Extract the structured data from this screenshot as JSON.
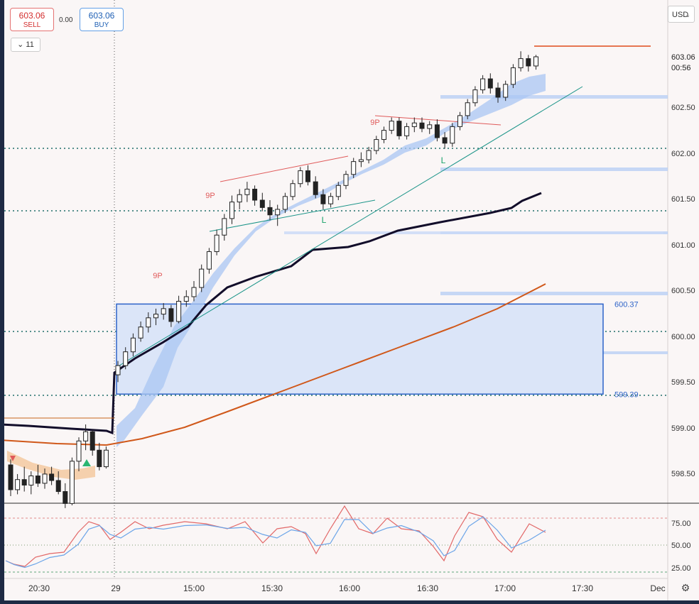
{
  "toolbar": {
    "sell_price": "603.06",
    "sell_label": "SELL",
    "spread": "0.00",
    "buy_price": "603.06",
    "buy_label": "BUY",
    "interval": "11",
    "currency": "USD"
  },
  "price_badge": {
    "price": "603.06",
    "countdown": "00:56"
  },
  "zone": {
    "top_label": "600.37",
    "bottom_label": "599.39"
  },
  "settings_icon": "gear-icon",
  "chart_data": {
    "type": "candlestick",
    "y_range": [
      598.3,
      603.15
    ],
    "y_ticks": [
      "603.06",
      "602.50",
      "602.00",
      "601.50",
      "601.00",
      "600.50",
      "600.00",
      "599.50",
      "599.00",
      "598.50"
    ],
    "x_ticks": [
      "20:30",
      "29",
      "15:00",
      "15:30",
      "16:00",
      "16:30",
      "17:00",
      "17:30",
      "Dec"
    ],
    "x_range": [
      "20:10",
      "17:55"
    ],
    "candles": [
      [
        598.62,
        598.68,
        598.28,
        598.35
      ],
      [
        598.35,
        598.52,
        598.3,
        598.46
      ],
      [
        598.46,
        598.6,
        598.33,
        598.4
      ],
      [
        598.4,
        598.55,
        598.3,
        598.5
      ],
      [
        598.5,
        598.62,
        598.38,
        598.42
      ],
      [
        598.42,
        598.58,
        598.36,
        598.52
      ],
      [
        598.52,
        598.6,
        598.4,
        598.45
      ],
      [
        598.45,
        598.55,
        598.3,
        598.33
      ],
      [
        598.33,
        598.42,
        598.15,
        598.2
      ],
      [
        598.2,
        598.7,
        598.18,
        598.66
      ],
      [
        598.66,
        598.92,
        598.55,
        598.88
      ],
      [
        598.88,
        599.06,
        598.78,
        598.98
      ],
      [
        598.98,
        599.0,
        598.72,
        598.78
      ],
      [
        598.78,
        598.86,
        598.56,
        598.6
      ],
      [
        598.6,
        598.82,
        598.58,
        598.78
      ],
      [
        599.6,
        599.75,
        599.52,
        599.7
      ],
      [
        599.7,
        599.9,
        599.66,
        599.85
      ],
      [
        599.85,
        600.05,
        599.8,
        600.0
      ],
      [
        600.0,
        600.18,
        599.96,
        600.12
      ],
      [
        600.12,
        600.28,
        600.06,
        600.22
      ],
      [
        600.22,
        600.32,
        600.14,
        600.26
      ],
      [
        600.26,
        600.38,
        600.2,
        600.32
      ],
      [
        600.32,
        600.36,
        600.12,
        600.18
      ],
      [
        600.18,
        600.46,
        600.16,
        600.4
      ],
      [
        600.4,
        600.52,
        600.34,
        600.45
      ],
      [
        600.45,
        600.62,
        600.4,
        600.55
      ],
      [
        600.55,
        600.8,
        600.5,
        600.75
      ],
      [
        600.75,
        600.98,
        600.7,
        600.94
      ],
      [
        600.94,
        601.18,
        600.9,
        601.12
      ],
      [
        601.12,
        601.35,
        601.06,
        601.3
      ],
      [
        601.3,
        601.55,
        601.24,
        601.48
      ],
      [
        601.48,
        601.62,
        601.4,
        601.56
      ],
      [
        601.56,
        601.7,
        601.48,
        601.62
      ],
      [
        601.62,
        601.66,
        601.44,
        601.5
      ],
      [
        601.5,
        601.58,
        601.38,
        601.42
      ],
      [
        601.42,
        601.5,
        601.28,
        601.34
      ],
      [
        601.34,
        601.45,
        601.22,
        601.4
      ],
      [
        601.4,
        601.58,
        601.36,
        601.54
      ],
      [
        601.54,
        601.72,
        601.5,
        601.68
      ],
      [
        601.68,
        601.86,
        601.64,
        601.82
      ],
      [
        601.82,
        601.88,
        601.66,
        601.7
      ],
      [
        601.7,
        601.76,
        601.52,
        601.56
      ],
      [
        601.56,
        601.62,
        601.4,
        601.46
      ],
      [
        601.46,
        601.58,
        601.42,
        601.54
      ],
      [
        601.54,
        601.7,
        601.5,
        601.66
      ],
      [
        601.66,
        601.82,
        601.62,
        601.78
      ],
      [
        601.78,
        601.96,
        601.74,
        601.92
      ],
      [
        601.92,
        602.02,
        601.86,
        601.94
      ],
      [
        601.94,
        602.08,
        601.9,
        602.04
      ],
      [
        602.04,
        602.2,
        602.0,
        602.16
      ],
      [
        602.16,
        602.3,
        602.12,
        602.26
      ],
      [
        602.26,
        602.4,
        602.22,
        602.36
      ],
      [
        602.36,
        602.4,
        602.16,
        602.2
      ],
      [
        602.2,
        602.34,
        602.16,
        602.3
      ],
      [
        602.3,
        602.4,
        602.24,
        602.34
      ],
      [
        602.34,
        602.4,
        602.24,
        602.28
      ],
      [
        602.28,
        602.36,
        602.22,
        602.32
      ],
      [
        602.32,
        602.38,
        602.14,
        602.18
      ],
      [
        602.18,
        602.24,
        602.06,
        602.12
      ],
      [
        602.12,
        602.34,
        602.08,
        602.3
      ],
      [
        602.3,
        602.46,
        602.26,
        602.42
      ],
      [
        602.42,
        602.6,
        602.38,
        602.56
      ],
      [
        602.56,
        602.74,
        602.52,
        602.7
      ],
      [
        602.7,
        602.86,
        602.66,
        602.82
      ],
      [
        602.82,
        602.88,
        602.66,
        602.72
      ],
      [
        602.72,
        602.78,
        602.56,
        602.62
      ],
      [
        602.62,
        602.8,
        602.58,
        602.76
      ],
      [
        602.76,
        602.98,
        602.72,
        602.94
      ],
      [
        602.94,
        603.12,
        602.9,
        603.04
      ],
      [
        603.04,
        603.08,
        602.9,
        602.96
      ],
      [
        602.96,
        603.08,
        602.92,
        603.06
      ]
    ]
  }
}
